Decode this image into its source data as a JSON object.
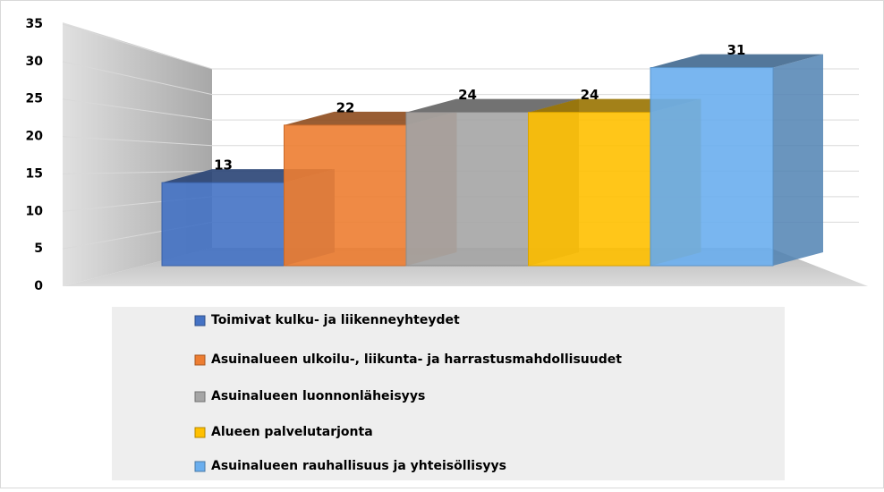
{
  "chart_data": {
    "type": "bar3d",
    "categories": [
      null
    ],
    "series": [
      {
        "name": "Toimivat kulku- ja liikenneyhteydet",
        "color": "#4472c4",
        "values": [
          13
        ]
      },
      {
        "name": "Asuinalueen ulkoilu-, liikunta- ja harrastusmahdollisuudet",
        "color": "#ed7d31",
        "values": [
          22
        ]
      },
      {
        "name": "Asuinalueen luonnonläheisyys",
        "color": "#a5a5a5",
        "values": [
          24
        ]
      },
      {
        "name": "Alueen palvelutarjonta",
        "color": "#ffc000",
        "values": [
          24
        ]
      },
      {
        "name": "Asuinalueen rauhallisuus ja yhteisöllisyys",
        "color": "#6aaeee",
        "values": [
          31
        ]
      }
    ],
    "ylim": [
      0,
      35
    ],
    "yticks": [
      0,
      5,
      10,
      15,
      20,
      25,
      30,
      35
    ],
    "grid": true,
    "legend": "bottom"
  }
}
